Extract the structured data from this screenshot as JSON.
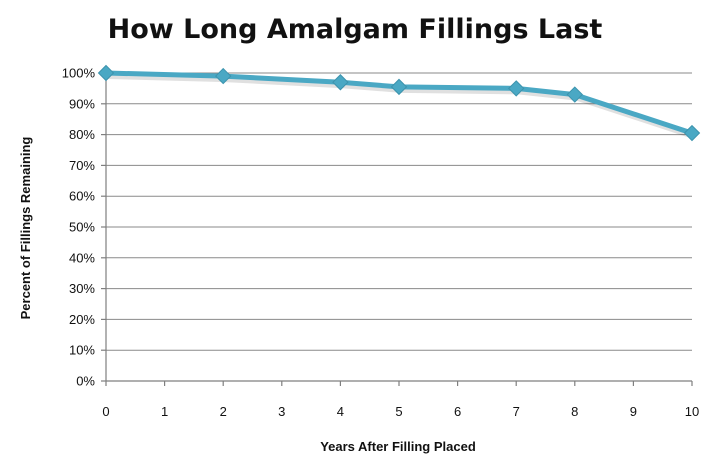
{
  "chart_data": {
    "type": "line",
    "title": "How Long Amalgam Fillings Last",
    "xlabel": "Years After Filling Placed",
    "ylabel": "Percent of Fillings  Remaining",
    "x_ticks": [
      "0",
      "1",
      "2",
      "3",
      "4",
      "5",
      "6",
      "7",
      "8",
      "9",
      "10"
    ],
    "y_ticks": [
      "0%",
      "10%",
      "20%",
      "30%",
      "40%",
      "50%",
      "60%",
      "70%",
      "80%",
      "90%",
      "100%"
    ],
    "xlim": [
      0,
      10
    ],
    "ylim": [
      0,
      100
    ],
    "grid": "horizontal",
    "legend": "none",
    "series": [
      {
        "x": [
          0,
          2,
          4,
          5,
          7,
          8,
          10
        ],
        "values": [
          100,
          99,
          97,
          95.5,
          95,
          93,
          80.5
        ]
      }
    ],
    "colors": {
      "line": "#4aa8c4",
      "marker": "#4aa8c4",
      "grid": "#8a8a8a"
    }
  }
}
